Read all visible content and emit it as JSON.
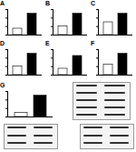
{
  "chart_data": [
    {
      "type": "bar",
      "title": "A",
      "categories": [
        null,
        null
      ],
      "values": [
        0.3,
        1.0
      ],
      "colors": [
        "#ffffff",
        "#000000"
      ],
      "ylim": [
        0,
        1.2
      ],
      "yticks": [
        0,
        0.4,
        0.8,
        1.2
      ],
      "tick_labels": false
    },
    {
      "type": "bar",
      "title": "B",
      "categories": [
        null,
        null
      ],
      "values": [
        0.4,
        1.0
      ],
      "colors": [
        "#ffffff",
        "#000000"
      ],
      "ylim": [
        0,
        1.2
      ],
      "yticks": [
        0,
        0.4,
        0.8,
        1.2
      ],
      "tick_labels": false
    },
    {
      "type": "bar",
      "title": "C",
      "categories": [
        null,
        null
      ],
      "values": [
        0.6,
        1.0
      ],
      "colors": [
        "#ffffff",
        "#000000"
      ],
      "ylim": [
        0,
        1.2
      ],
      "yticks": [
        0,
        0.4,
        0.8,
        1.2
      ],
      "tick_labels": false
    },
    {
      "type": "bar",
      "title": "D",
      "categories": [
        null,
        null
      ],
      "values": [
        0.4,
        1.0
      ],
      "colors": [
        "#ffffff",
        "#000000"
      ],
      "ylim": [
        0,
        1.2
      ],
      "yticks": [
        0,
        0.4,
        0.8,
        1.2
      ],
      "tick_labels": false
    },
    {
      "type": "bar",
      "title": "E",
      "categories": [
        null,
        null
      ],
      "values": [
        0.3,
        0.9
      ],
      "colors": [
        "#ffffff",
        "#000000"
      ],
      "ylim": [
        0,
        1.2
      ],
      "yticks": [
        0,
        0.4,
        0.8,
        1.2
      ],
      "tick_labels": false
    },
    {
      "type": "bar",
      "title": "F",
      "categories": [
        null,
        null
      ],
      "values": [
        0.5,
        1.0
      ],
      "colors": [
        "#ffffff",
        "#000000"
      ],
      "ylim": [
        0,
        1.2
      ],
      "yticks": [
        0,
        0.4,
        0.8,
        1.2
      ],
      "tick_labels": false
    },
    {
      "type": "bar",
      "title": "G",
      "categories": [
        null,
        null
      ],
      "values": [
        0.2,
        1.0
      ],
      "colors": [
        "#ffffff",
        "#000000"
      ],
      "ylim": [
        0,
        1.2
      ],
      "yticks": [
        0,
        0.4,
        0.8,
        1.2
      ],
      "tick_labels": false
    }
  ]
}
